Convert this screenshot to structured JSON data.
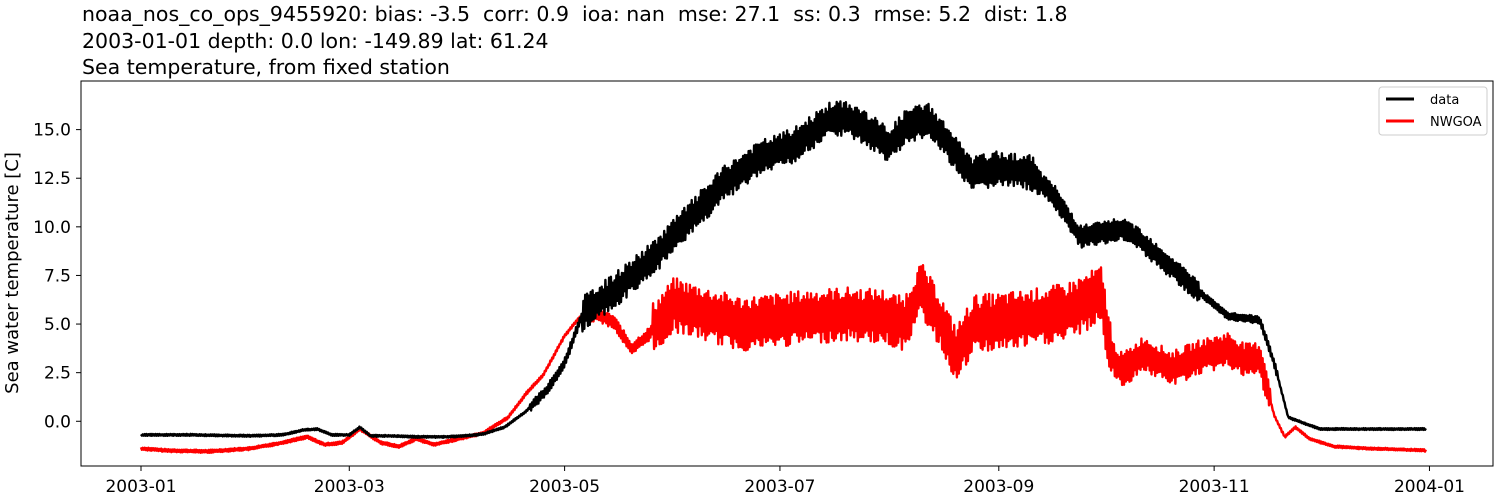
{
  "chart_data": {
    "type": "line",
    "title_lines": [
      "noaa_nos_co_ops_9455920: bias: -3.5  corr: 0.9  ioa: nan  mse: 27.1  ss: 0.3  rmse: 5.2  dist: 1.8",
      "2003-01-01 depth: 0.0 lon: -149.89 lat: 61.24",
      "Sea temperature, from fixed station"
    ],
    "xlabel": "",
    "ylabel": "Sea water temperature [C]",
    "xlim": [
      "2002-12-15",
      "2004-01-19"
    ],
    "ylim": [
      -2.3,
      17.5
    ],
    "x_ticks": [
      "2003-01",
      "2003-03",
      "2003-05",
      "2003-07",
      "2003-09",
      "2003-11",
      "2004-01"
    ],
    "y_ticks": [
      "0.0",
      "2.5",
      "5.0",
      "7.5",
      "10.0",
      "12.5",
      "15.0"
    ],
    "y_tick_values": [
      0,
      2.5,
      5,
      7.5,
      10,
      12.5,
      15
    ],
    "grid": false,
    "legend_position": "top-right",
    "series": [
      {
        "name": "data",
        "color": "#000000",
        "x": [
          "2003-01-01",
          "2003-01-15",
          "2003-02-01",
          "2003-02-10",
          "2003-02-16",
          "2003-02-20",
          "2003-02-24",
          "2003-03-01",
          "2003-03-04",
          "2003-03-07",
          "2003-03-12",
          "2003-03-20",
          "2003-03-28",
          "2003-04-03",
          "2003-04-08",
          "2003-04-14",
          "2003-04-20",
          "2003-04-26",
          "2003-05-01",
          "2003-05-06",
          "2003-05-15",
          "2003-05-25",
          "2003-06-05",
          "2003-06-15",
          "2003-06-25",
          "2003-07-05",
          "2003-07-15",
          "2003-07-20",
          "2003-07-25",
          "2003-08-01",
          "2003-08-06",
          "2003-08-12",
          "2003-08-18",
          "2003-08-24",
          "2003-09-01",
          "2003-09-10",
          "2003-09-17",
          "2003-09-24",
          "2003-10-01",
          "2003-10-05",
          "2003-10-10",
          "2003-10-20",
          "2003-10-30",
          "2003-11-05",
          "2003-11-10",
          "2003-11-14",
          "2003-11-18",
          "2003-11-22",
          "2003-12-01",
          "2003-12-15",
          "2003-12-31"
        ],
        "y": [
          -0.7,
          -0.7,
          -0.75,
          -0.7,
          -0.45,
          -0.4,
          -0.7,
          -0.7,
          -0.3,
          -0.75,
          -0.75,
          -0.8,
          -0.8,
          -0.75,
          -0.65,
          -0.3,
          0.5,
          1.6,
          3.0,
          5.5,
          6.7,
          8.2,
          10.3,
          12.2,
          13.5,
          14.2,
          15.5,
          15.6,
          15.1,
          14.2,
          15.2,
          15.5,
          14.2,
          12.7,
          13.0,
          12.8,
          11.5,
          9.5,
          9.7,
          9.9,
          9.5,
          7.9,
          6.3,
          5.4,
          5.3,
          5.2,
          3.0,
          0.2,
          -0.4,
          -0.4,
          -0.4
        ]
      },
      {
        "name": "NWGOA",
        "color": "#ff0000",
        "x": [
          "2003-01-01",
          "2003-01-08",
          "2003-01-20",
          "2003-02-01",
          "2003-02-10",
          "2003-02-17",
          "2003-02-22",
          "2003-02-27",
          "2003-03-04",
          "2003-03-10",
          "2003-03-15",
          "2003-03-20",
          "2003-03-25",
          "2003-04-01",
          "2003-04-08",
          "2003-04-15",
          "2003-04-20",
          "2003-04-25",
          "2003-05-01",
          "2003-05-05",
          "2003-05-10",
          "2003-05-15",
          "2003-05-20",
          "2003-05-25",
          "2003-06-01",
          "2003-06-10",
          "2003-06-20",
          "2003-07-01",
          "2003-07-10",
          "2003-07-20",
          "2003-07-30",
          "2003-08-05",
          "2003-08-10",
          "2003-08-15",
          "2003-08-20",
          "2003-08-25",
          "2003-09-01",
          "2003-09-10",
          "2003-09-20",
          "2003-09-30",
          "2003-10-03",
          "2003-10-06",
          "2003-10-12",
          "2003-10-20",
          "2003-10-28",
          "2003-11-05",
          "2003-11-10",
          "2003-11-14",
          "2003-11-18",
          "2003-11-21",
          "2003-11-24",
          "2003-11-28",
          "2003-12-05",
          "2003-12-15",
          "2003-12-31"
        ],
        "y": [
          -1.4,
          -1.5,
          -1.55,
          -1.4,
          -1.1,
          -0.8,
          -1.2,
          -1.1,
          -0.4,
          -1.1,
          -1.3,
          -0.9,
          -1.2,
          -0.9,
          -0.6,
          0.2,
          1.4,
          2.4,
          4.4,
          5.3,
          5.5,
          5.1,
          3.7,
          4.5,
          6.0,
          5.5,
          5.0,
          5.2,
          5.4,
          5.5,
          5.4,
          5.0,
          6.8,
          5.3,
          3.4,
          5.0,
          5.1,
          5.3,
          5.6,
          6.5,
          3.3,
          2.6,
          3.5,
          2.7,
          3.3,
          3.7,
          3.1,
          3.2,
          0.3,
          -0.8,
          -0.3,
          -0.9,
          -1.3,
          -1.4,
          -1.5
        ]
      }
    ]
  }
}
